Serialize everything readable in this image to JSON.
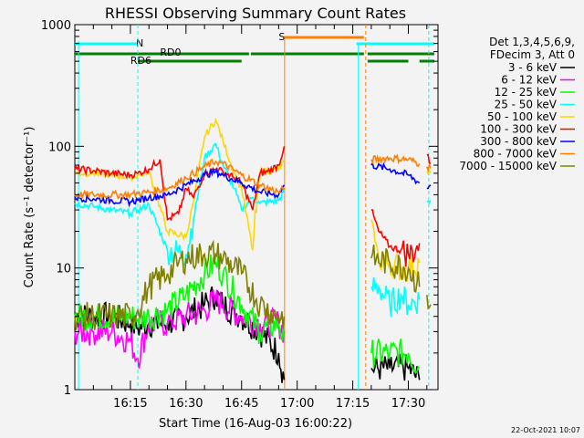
{
  "chart_data": {
    "type": "line",
    "title": "RHESSI Observing Summary Count Rates",
    "xlabel": "Start Time (16-Aug-03 16:00:22)",
    "ylabel": "Count Rate (s⁻¹ detector⁻¹)",
    "yscale": "log",
    "ylim": [
      1,
      1000
    ],
    "xlim_minutes": [
      0,
      98
    ],
    "x_tick_labels": [
      "16:15",
      "16:30",
      "16:45",
      "17:00",
      "17:15",
      "17:30"
    ],
    "x_tick_minutes": [
      15,
      30,
      45,
      60,
      75,
      90
    ],
    "y_tick_labels": [
      "1",
      "10",
      "100",
      "1000"
    ],
    "y_tick_values": [
      1,
      10,
      100,
      1000
    ],
    "grid": false,
    "legend_position": "right",
    "legend_header": [
      "Det 1,3,4,5,6,9,",
      "FDecim 3, Att 0"
    ],
    "timestamp": "22-Oct-2021 10:07",
    "annotations": {
      "night_label": "N",
      "saa_label": "S",
      "rd0_label": "RD0",
      "rd6_label": "RD6"
    },
    "flag_colors": {
      "night": "#00ffff",
      "saa": "#ff7f00",
      "decim": "#007f00"
    },
    "flag_bars": {
      "night": [
        [
          0,
          17
        ],
        [
          76,
          97
        ]
      ],
      "saa": [
        [
          56.5,
          78
        ]
      ],
      "rd0": [
        [
          0,
          47
        ],
        [
          47.5,
          78
        ],
        [
          79,
          97
        ]
      ],
      "rd6": [
        [
          17,
          45
        ],
        [
          79,
          90
        ],
        [
          93,
          97
        ]
      ]
    },
    "vlines": [
      {
        "x": 17,
        "color": "#00ffff"
      },
      {
        "x": 78.5,
        "color": "#ff7f00"
      },
      {
        "x": 95.5,
        "color": "#00ffff"
      }
    ],
    "gaps": [
      [
        56.5,
        79.5
      ],
      [
        93.5,
        95.5
      ]
    ],
    "series": [
      {
        "name": "3 - 6 keV",
        "color": "#000000",
        "x": [
          0,
          5,
          10,
          15,
          17,
          20,
          25,
          30,
          35,
          38,
          40,
          45,
          50,
          55,
          56.5,
          80,
          85,
          90,
          93
        ],
        "y": [
          4,
          4,
          4,
          3.5,
          3.2,
          3.5,
          3.5,
          4,
          5,
          6,
          5,
          4,
          3,
          2,
          1.2,
          1.5,
          1.5,
          1.5,
          1.2
        ]
      },
      {
        "name": "6 - 12 keV",
        "color": "#ff00ff",
        "x": [
          0,
          5,
          10,
          15,
          17,
          20,
          25,
          30,
          35,
          38,
          40,
          45,
          50,
          55,
          56.5
        ],
        "y": [
          3,
          3,
          3,
          2.5,
          1.8,
          3.5,
          3.5,
          4,
          4.5,
          5.5,
          5,
          4,
          3.5,
          3.5,
          3
        ]
      },
      {
        "name": "12 - 25 keV",
        "color": "#00ff00",
        "x": [
          0,
          5,
          10,
          15,
          17,
          20,
          25,
          30,
          35,
          38,
          40,
          45,
          50,
          55,
          56.5,
          80,
          85,
          90,
          93
        ],
        "y": [
          4,
          4,
          4,
          4,
          3.8,
          4,
          4.5,
          6,
          9,
          11,
          9,
          5,
          3,
          3.5,
          2.5,
          2,
          2,
          2,
          1.5
        ]
      },
      {
        "name": "25 - 50 keV",
        "color": "#00ffff",
        "x": [
          0,
          5,
          10,
          15,
          17,
          20,
          25,
          30,
          32,
          35,
          38,
          40,
          43,
          45,
          48,
          50,
          55,
          56.5,
          80,
          82,
          85,
          88,
          90,
          93,
          95,
          96
        ],
        "y": [
          34,
          32,
          30,
          28,
          30,
          33,
          14,
          13,
          25,
          80,
          105,
          70,
          45,
          30,
          38,
          34,
          36,
          42,
          7,
          7,
          5,
          6,
          5,
          5.5,
          35,
          36
        ]
      },
      {
        "name": "50 - 100 keV",
        "color": "#ffd700",
        "x": [
          0,
          5,
          10,
          15,
          17,
          20,
          25,
          30,
          32,
          35,
          38,
          40,
          43,
          45,
          48,
          50,
          55,
          56.5,
          80,
          82,
          85,
          88,
          90,
          93,
          95,
          96
        ],
        "y": [
          60,
          60,
          58,
          56,
          58,
          62,
          20,
          18,
          35,
          120,
          165,
          110,
          60,
          45,
          14,
          62,
          64,
          75,
          25,
          12,
          11,
          10,
          10,
          11,
          62,
          60
        ]
      },
      {
        "name": "100 - 300 keV",
        "color": "#ff0000",
        "x": [
          0,
          5,
          10,
          15,
          17,
          20,
          23,
          25,
          28,
          30,
          32,
          35,
          38,
          40,
          43,
          45,
          48,
          50,
          52,
          55,
          56.5,
          80,
          82,
          85,
          88,
          90,
          92,
          93,
          95,
          96
        ],
        "y": [
          65,
          63,
          60,
          58,
          60,
          65,
          78,
          25,
          28,
          45,
          38,
          60,
          65,
          62,
          55,
          50,
          30,
          60,
          62,
          70,
          100,
          30,
          20,
          15,
          14,
          13,
          14,
          16,
          85,
          72
        ]
      },
      {
        "name": "300 - 800 keV",
        "color": "#0000ff",
        "x": [
          0,
          5,
          10,
          15,
          17,
          20,
          25,
          30,
          35,
          38,
          40,
          45,
          50,
          55,
          56.5,
          80,
          85,
          90,
          93,
          95,
          96
        ],
        "y": [
          38,
          37,
          36,
          35,
          36,
          38,
          40,
          48,
          58,
          62,
          58,
          50,
          42,
          40,
          48,
          70,
          65,
          58,
          50,
          45,
          48
        ]
      },
      {
        "name": "800 - 7000 keV",
        "color": "#ff7f00",
        "x": [
          0,
          5,
          10,
          15,
          17,
          20,
          25,
          30,
          35,
          38,
          40,
          45,
          50,
          55,
          56.5,
          80,
          85,
          90,
          93,
          95,
          96
        ],
        "y": [
          40,
          40,
          40,
          40,
          41,
          42,
          45,
          55,
          68,
          75,
          72,
          58,
          48,
          42,
          45,
          78,
          80,
          78,
          72,
          68,
          66
        ]
      },
      {
        "name": "7000 - 15000 keV",
        "color": "#808000",
        "x": [
          0,
          5,
          10,
          15,
          17,
          20,
          25,
          28,
          30,
          35,
          38,
          40,
          45,
          50,
          55,
          56.5,
          80,
          85,
          90,
          93,
          95,
          96
        ],
        "y": [
          4,
          4,
          4,
          4,
          4.5,
          7,
          9,
          11,
          12,
          13,
          13,
          12,
          9,
          5,
          4,
          4,
          12,
          11,
          10,
          7,
          6,
          5
        ]
      }
    ]
  }
}
